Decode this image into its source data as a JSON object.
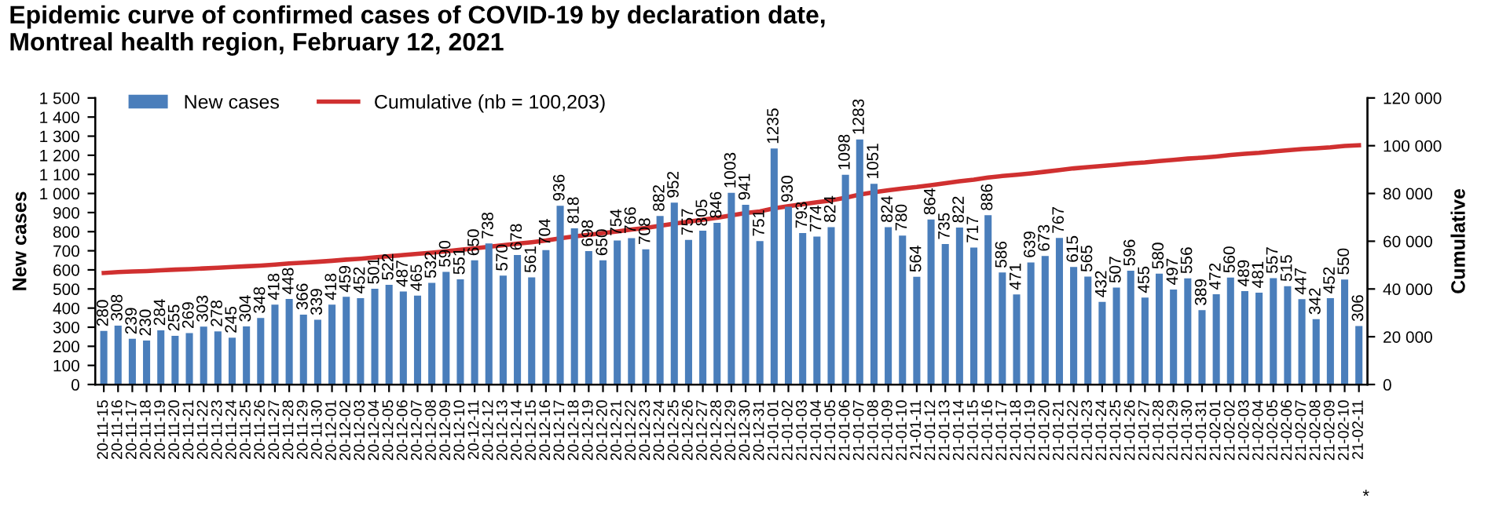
{
  "chart_data": {
    "type": "bar",
    "title": "Epidemic curve of confirmed cases of COVID-19 by declaration date,\nMontreal health region, February 12, 2021",
    "categories": [
      "20-11-15",
      "20-11-16",
      "20-11-17",
      "20-11-18",
      "20-11-19",
      "20-11-20",
      "20-11-21",
      "20-11-22",
      "20-11-23",
      "20-11-24",
      "20-11-25",
      "20-11-26",
      "20-11-27",
      "20-11-28",
      "20-11-29",
      "20-11-30",
      "20-12-01",
      "20-12-02",
      "20-12-03",
      "20-12-04",
      "20-12-05",
      "20-12-06",
      "20-12-07",
      "20-12-08",
      "20-12-09",
      "20-12-10",
      "20-12-11",
      "20-12-12",
      "20-12-13",
      "20-12-14",
      "20-12-15",
      "20-12-16",
      "20-12-17",
      "20-12-18",
      "20-12-19",
      "20-12-20",
      "20-12-21",
      "20-12-22",
      "20-12-23",
      "20-12-24",
      "20-12-25",
      "20-12-26",
      "20-12-27",
      "20-12-28",
      "20-12-29",
      "20-12-30",
      "20-12-31",
      "21-01-01",
      "21-01-02",
      "21-01-03",
      "21-01-04",
      "21-01-05",
      "21-01-06",
      "21-01-07",
      "21-01-08",
      "21-01-09",
      "21-01-10",
      "21-01-11",
      "21-01-12",
      "21-01-13",
      "21-01-14",
      "21-01-15",
      "21-01-16",
      "21-01-17",
      "21-01-18",
      "21-01-19",
      "21-01-20",
      "21-01-21",
      "21-01-22",
      "21-01-23",
      "21-01-24",
      "21-01-25",
      "21-01-26",
      "21-01-27",
      "21-01-28",
      "21-01-29",
      "21-01-30",
      "21-01-31",
      "21-02-01",
      "21-02-02",
      "21-02-03",
      "21-02-04",
      "21-02-05",
      "21-02-06",
      "21-02-07",
      "21-02-08",
      "21-02-09",
      "21-02-10",
      "21-02-11"
    ],
    "series": [
      {
        "name": "New cases",
        "color": "#4a7ebb",
        "data_labels": true,
        "values": [
          280,
          308,
          239,
          230,
          284,
          255,
          269,
          303,
          278,
          245,
          304,
          348,
          418,
          448,
          366,
          339,
          418,
          459,
          452,
          501,
          522,
          487,
          465,
          532,
          590,
          551,
          650,
          738,
          570,
          678,
          561,
          704,
          936,
          818,
          698,
          650,
          754,
          766,
          708,
          882,
          952,
          757,
          805,
          846,
          1003,
          941,
          751,
          1235,
          930,
          793,
          774,
          824,
          1098,
          1283,
          1051,
          824,
          780,
          564,
          864,
          735,
          822,
          717,
          886,
          586,
          471,
          639,
          673,
          767,
          615,
          565,
          432,
          507,
          596,
          455,
          580,
          497,
          556,
          389,
          472,
          560,
          489,
          481,
          557,
          515,
          447,
          342,
          452,
          550,
          306
        ]
      },
      {
        "name": "Cumulative (nb = 100,203)",
        "type": "line",
        "axis": "y2",
        "color": "#d03030",
        "values": [
          46700,
          47100,
          47300,
          47500,
          47800,
          48100,
          48300,
          48600,
          48900,
          49200,
          49500,
          49800,
          50200,
          50700,
          51000,
          51400,
          51800,
          52300,
          52700,
          53200,
          53700,
          54200,
          54700,
          55200,
          55800,
          56400,
          57000,
          57700,
          58300,
          59000,
          59600,
          60300,
          61200,
          62000,
          62700,
          63400,
          64100,
          64900,
          65600,
          66500,
          67400,
          68200,
          69000,
          69800,
          70800,
          71800,
          72500,
          73800,
          74700,
          75500,
          76300,
          77100,
          78200,
          79500,
          80500,
          81300,
          82100,
          82700,
          83500,
          84300,
          85100,
          85800,
          86700,
          87300,
          87800,
          88400,
          89100,
          89800,
          90500,
          91000,
          91500,
          92000,
          92600,
          93000,
          93600,
          94100,
          94600,
          95000,
          95500,
          96100,
          96600,
          97000,
          97600,
          98100,
          98600,
          98900,
          99300,
          99900,
          100200
        ]
      }
    ],
    "ylabel": "New cases",
    "y2label": "Cumulative",
    "ylim": [
      0,
      1500
    ],
    "yticks": [
      0,
      {
        "value": 100,
        "label": "100"
      },
      200,
      300,
      400,
      500,
      600,
      700,
      800,
      900,
      {
        "value": 1000,
        "label": "1 000"
      },
      {
        "value": 1100,
        "label": "1 100"
      },
      {
        "value": 1200,
        "label": "1 200"
      },
      {
        "value": 1300,
        "label": "1 300"
      },
      {
        "value": 1400,
        "label": "1 400"
      },
      {
        "value": 1500,
        "label": "1 500"
      }
    ],
    "y2lim": [
      0,
      120000
    ],
    "y2ticks": [
      0,
      {
        "value": 20000,
        "label": "20 000"
      },
      {
        "value": 40000,
        "label": "40 000"
      },
      {
        "value": 60000,
        "label": "60 000"
      },
      {
        "value": 80000,
        "label": "80 000"
      },
      {
        "value": 100000,
        "label": "100 000"
      },
      {
        "value": 120000,
        "label": "120 000"
      }
    ],
    "legend": "top left",
    "grid": false,
    "annotations": [
      "*"
    ]
  }
}
